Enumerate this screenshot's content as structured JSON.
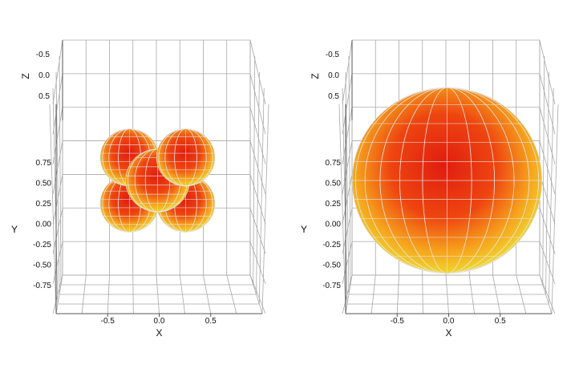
{
  "chart_data": [
    {
      "type": "3d-surface",
      "title": "",
      "axes": {
        "x": {
          "label": "X",
          "ticks": [
            "-0.5",
            "0.0",
            "0.5"
          ],
          "tick_values": [
            -0.5,
            0.0,
            0.5
          ],
          "range": [
            -1,
            1
          ]
        },
        "y": {
          "label": "Y",
          "ticks": [
            "0.75",
            "0.50",
            "0.25",
            "0.00",
            "-0.25",
            "-0.50",
            "-0.75"
          ],
          "tick_values": [
            0.75,
            0.5,
            0.25,
            0.0,
            -0.25,
            -0.5,
            -0.75
          ],
          "range": [
            -0.875,
            0.875
          ]
        },
        "z": {
          "label": "Z",
          "ticks": [
            "-0.5",
            "0.0",
            "0.5"
          ],
          "tick_values": [
            -0.5,
            0.0,
            0.5
          ],
          "range": [
            -0.875,
            0.875
          ]
        }
      },
      "grid": true,
      "colormap": [
        "#e01d10",
        "#f35510",
        "#f7b820",
        "#fbe830",
        "#8ee64a"
      ],
      "surface": {
        "shape": "four-lobed",
        "lobes": [
          {
            "x": -0.35,
            "y": 0.35,
            "r": 0.3
          },
          {
            "x": 0.35,
            "y": 0.35,
            "r": 0.3
          },
          {
            "x": -0.35,
            "y": -0.35,
            "r": 0.3
          },
          {
            "x": 0.35,
            "y": -0.35,
            "r": 0.3
          },
          {
            "x": 0.0,
            "y": 0.0,
            "r": 0.33
          }
        ]
      }
    },
    {
      "type": "3d-surface",
      "title": "",
      "axes": {
        "x": {
          "label": "X",
          "ticks": [
            "-0.5",
            "0.0",
            "0.5"
          ],
          "tick_values": [
            -0.5,
            0.0,
            0.5
          ],
          "range": [
            -1,
            1
          ]
        },
        "y": {
          "label": "Y",
          "ticks": [
            "0.75",
            "0.50",
            "0.25",
            "0.00",
            "-0.25",
            "-0.50",
            "-0.75"
          ],
          "tick_values": [
            0.75,
            0.5,
            0.25,
            0.0,
            -0.25,
            -0.5,
            -0.75
          ],
          "range": [
            -0.875,
            0.875
          ]
        },
        "z": {
          "label": "Z",
          "ticks": [
            "-0.5",
            "0.0",
            "0.5"
          ],
          "tick_values": [
            -0.5,
            0.0,
            0.5
          ],
          "range": [
            -0.875,
            0.875
          ]
        }
      },
      "grid": true,
      "colormap": [
        "#e01d10",
        "#f35510",
        "#f7b820",
        "#fbe830",
        "#8ee64a"
      ],
      "surface": {
        "shape": "sphere",
        "lobes": [
          {
            "x": 0.0,
            "y": 0.0,
            "r": 0.85
          }
        ]
      }
    }
  ]
}
